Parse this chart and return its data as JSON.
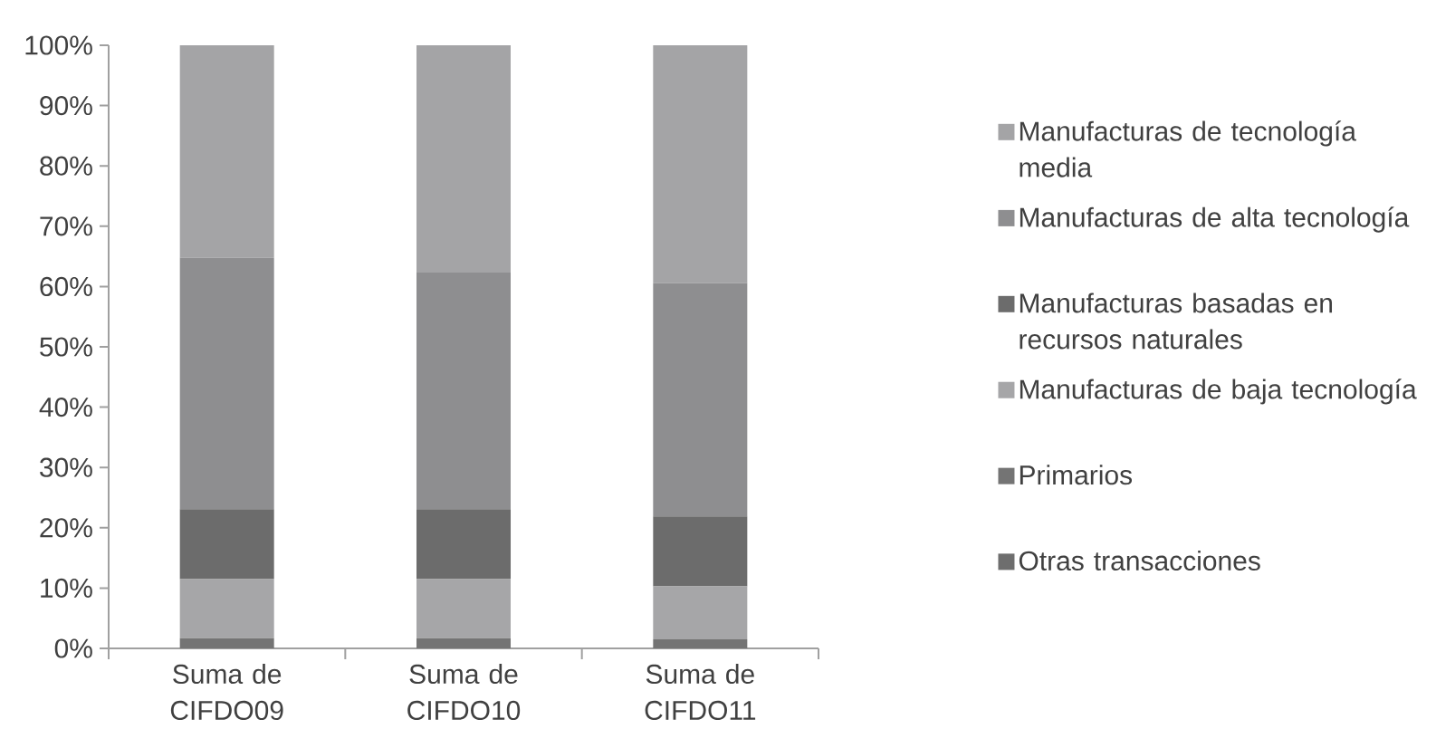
{
  "chart_data": {
    "type": "bar",
    "stacked": true,
    "categories": [
      "Suma de CIFDO09",
      "Suma de CIFDO10",
      "Suma de CIFDO11"
    ],
    "ylim": [
      0,
      100
    ],
    "yticks": [
      {
        "value": 0,
        "label": "0%"
      },
      {
        "value": 10,
        "label": "10%"
      },
      {
        "value": 20,
        "label": "20%"
      },
      {
        "value": 30,
        "label": "30%"
      },
      {
        "value": 40,
        "label": "40%"
      },
      {
        "value": 50,
        "label": "50%"
      },
      {
        "value": 60,
        "label": "60%"
      },
      {
        "value": 70,
        "label": "70%"
      },
      {
        "value": 80,
        "label": "80%"
      },
      {
        "value": 90,
        "label": "90%"
      },
      {
        "value": 100,
        "label": "100%"
      }
    ],
    "legend": "right",
    "series": [
      {
        "name": "Otras transacciones",
        "color": "#6e6e6e",
        "values": [
          null,
          null,
          null
        ]
      },
      {
        "name": "Primarios",
        "color": "#747474",
        "values": [
          1.7,
          1.7,
          1.5
        ]
      },
      {
        "name": "Manufacturas de baja tecnología",
        "color": "#a6a6a8",
        "values": [
          9.8,
          9.8,
          8.8
        ]
      },
      {
        "name": "Manufacturas basadas en recursos naturales",
        "color": "#6c6c6c",
        "values": [
          11.6,
          11.6,
          11.6
        ]
      },
      {
        "name": "Manufacturas de alta tecnología",
        "color": "#8e8e90",
        "values": [
          41.7,
          39.2,
          38.7
        ]
      },
      {
        "name": "Manufacturas de tecnología media",
        "color": "#a4a4a6",
        "values": [
          35.2,
          37.7,
          39.4
        ]
      }
    ]
  }
}
